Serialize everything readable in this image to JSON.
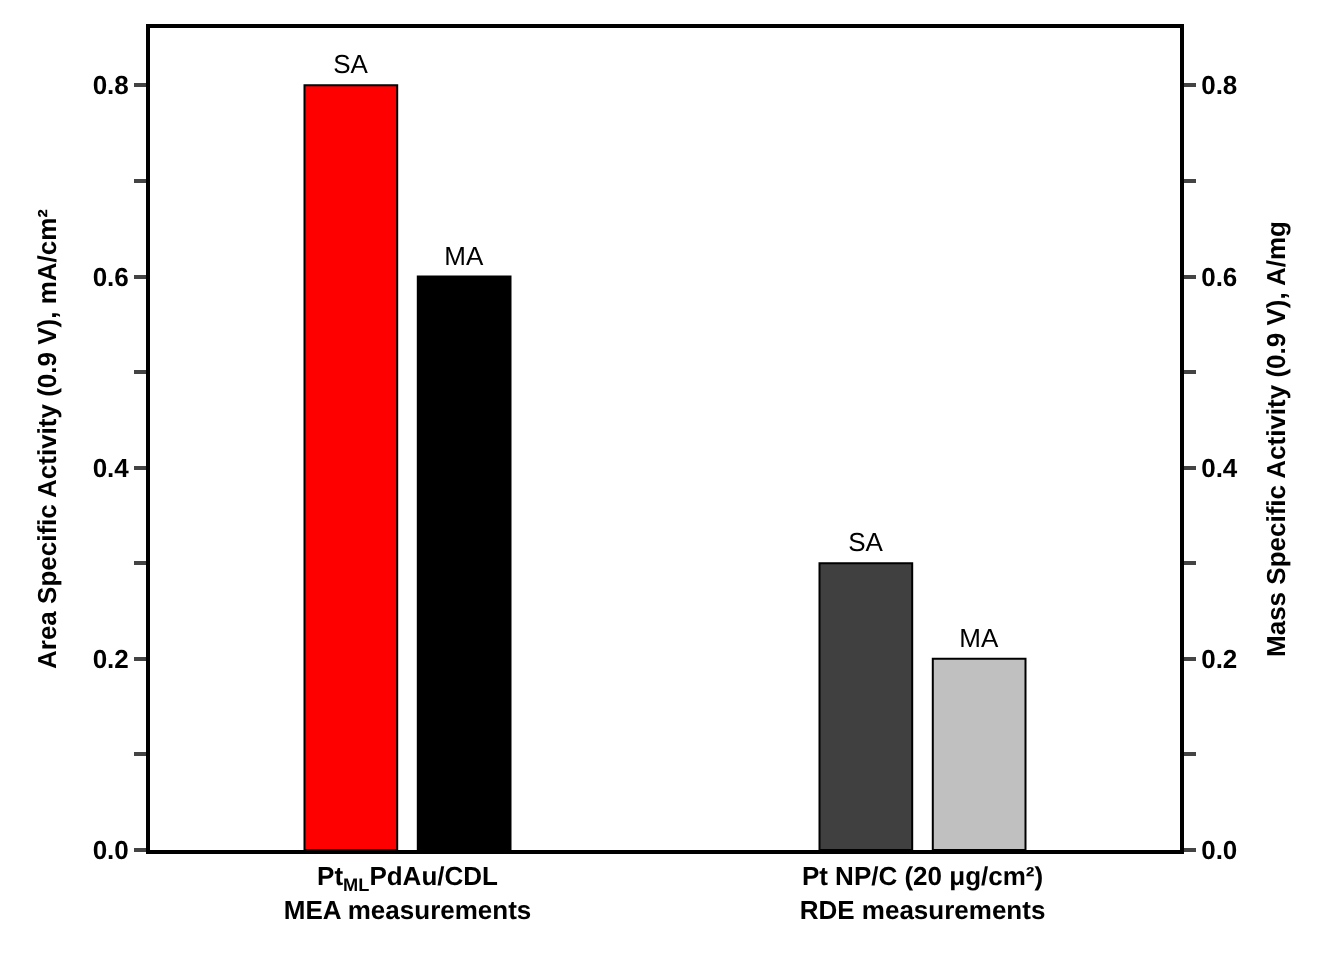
{
  "chart_data": {
    "type": "bar",
    "categories": [
      "Pt$_{ML}$PdAu/CDL\nMEA measurements",
      "Pt NP/C (20 μg/cm²)\nRDE measurements"
    ],
    "series": [
      {
        "name": "SA",
        "colors": [
          "#ff0000",
          "#404040"
        ],
        "values": [
          0.8,
          0.3
        ]
      },
      {
        "name": "MA",
        "colors": [
          "#000000",
          "#c0c0c0"
        ],
        "values": [
          0.6,
          0.2
        ],
        "axis": "y2"
      }
    ],
    "ylabel": "Area Specific Activity (0.9 V), mA/cm²",
    "y2label": "Mass Specific Activity (0.9 V), A/mg",
    "ylim": [
      0,
      0.86
    ],
    "yticks": [
      {
        "value": 0.0,
        "label": "0.0"
      },
      {
        "value": 0.1,
        "label": null
      },
      {
        "value": 0.2,
        "label": "0.2"
      },
      {
        "value": 0.3,
        "label": null
      },
      {
        "value": 0.4,
        "label": "0.4"
      },
      {
        "value": 0.5,
        "label": null
      },
      {
        "value": 0.6,
        "label": "0.6"
      },
      {
        "value": 0.7,
        "label": null
      },
      {
        "value": 0.8,
        "label": "0.8"
      }
    ],
    "y2lim": [
      0,
      0.86
    ],
    "y2ticks": [
      {
        "value": 0.0,
        "label": "0.0"
      },
      {
        "value": 0.1,
        "label": null
      },
      {
        "value": 0.2,
        "label": "0.2"
      },
      {
        "value": 0.3,
        "label": null
      },
      {
        "value": 0.4,
        "label": "0.4"
      },
      {
        "value": 0.5,
        "label": null
      },
      {
        "value": 0.6,
        "label": "0.6"
      },
      {
        "value": 0.7,
        "label": null
      },
      {
        "value": 0.8,
        "label": "0.8"
      }
    ]
  }
}
